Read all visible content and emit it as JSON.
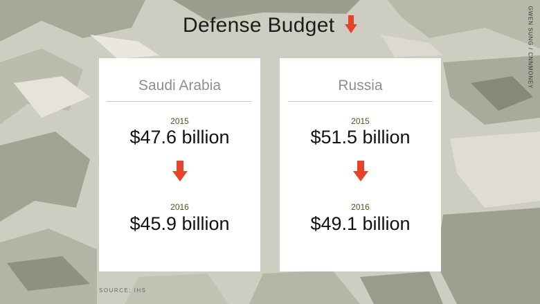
{
  "title": "Defense Budget",
  "credit": "GWEN SUNG / CNNMONEY",
  "source": "SOURCE: IHS",
  "colors": {
    "arrow": "#e8432a",
    "year": "#3f5a1c",
    "card": "#ffffff"
  },
  "cards": [
    {
      "country": "Saudi Arabia",
      "year_1": "2015",
      "amount_1": "$47.6 billion",
      "year_2": "2016",
      "amount_2": "$45.9 billion"
    },
    {
      "country": "Russia",
      "year_1": "2015",
      "amount_1": "$51.5 billion",
      "year_2": "2016",
      "amount_2": "$49.1 billion"
    }
  ]
}
